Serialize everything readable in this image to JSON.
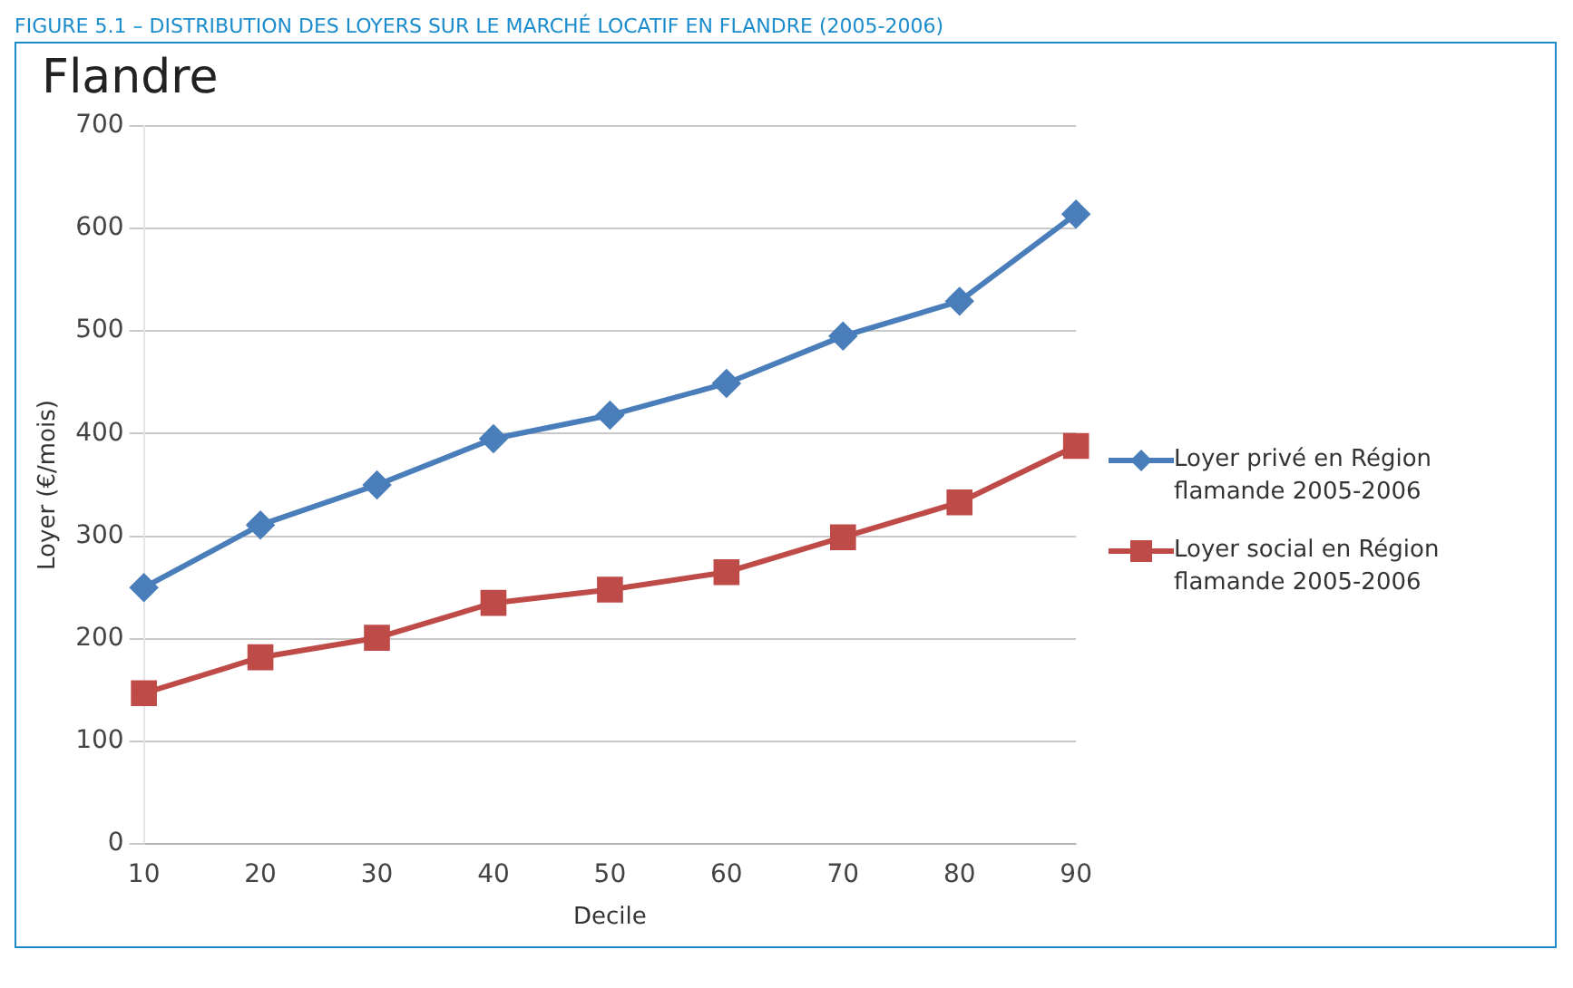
{
  "chart_data": {
    "type": "line",
    "title": "FIGURE 5.1 – DISTRIBUTION DES LOYERS SUR LE MARCHÉ LOCATIF EN FLANDRE (2005-2006)",
    "subtitle": "Flandre",
    "xlabel": "Decile",
    "ylabel": "Loyer (€/mois)",
    "categories": [
      "10",
      "20",
      "30",
      "40",
      "50",
      "60",
      "70",
      "80",
      "90"
    ],
    "series": [
      {
        "name": "Loyer privé en Région flamande 2005-2006",
        "color": "#4a7ebb",
        "marker": "diamond",
        "values": [
          250,
          311,
          350,
          395,
          418,
          449,
          495,
          529,
          614
        ]
      },
      {
        "name": "Loyer social en Région flamande 2005-2006",
        "color": "#be4b48",
        "marker": "square",
        "values": [
          147,
          182,
          201,
          235,
          248,
          265,
          299,
          333,
          388
        ]
      }
    ],
    "ylim": [
      0,
      700
    ],
    "yticks": [
      0,
      100,
      200,
      300,
      400,
      500,
      600,
      700
    ],
    "grid": "y",
    "legend": "right"
  }
}
